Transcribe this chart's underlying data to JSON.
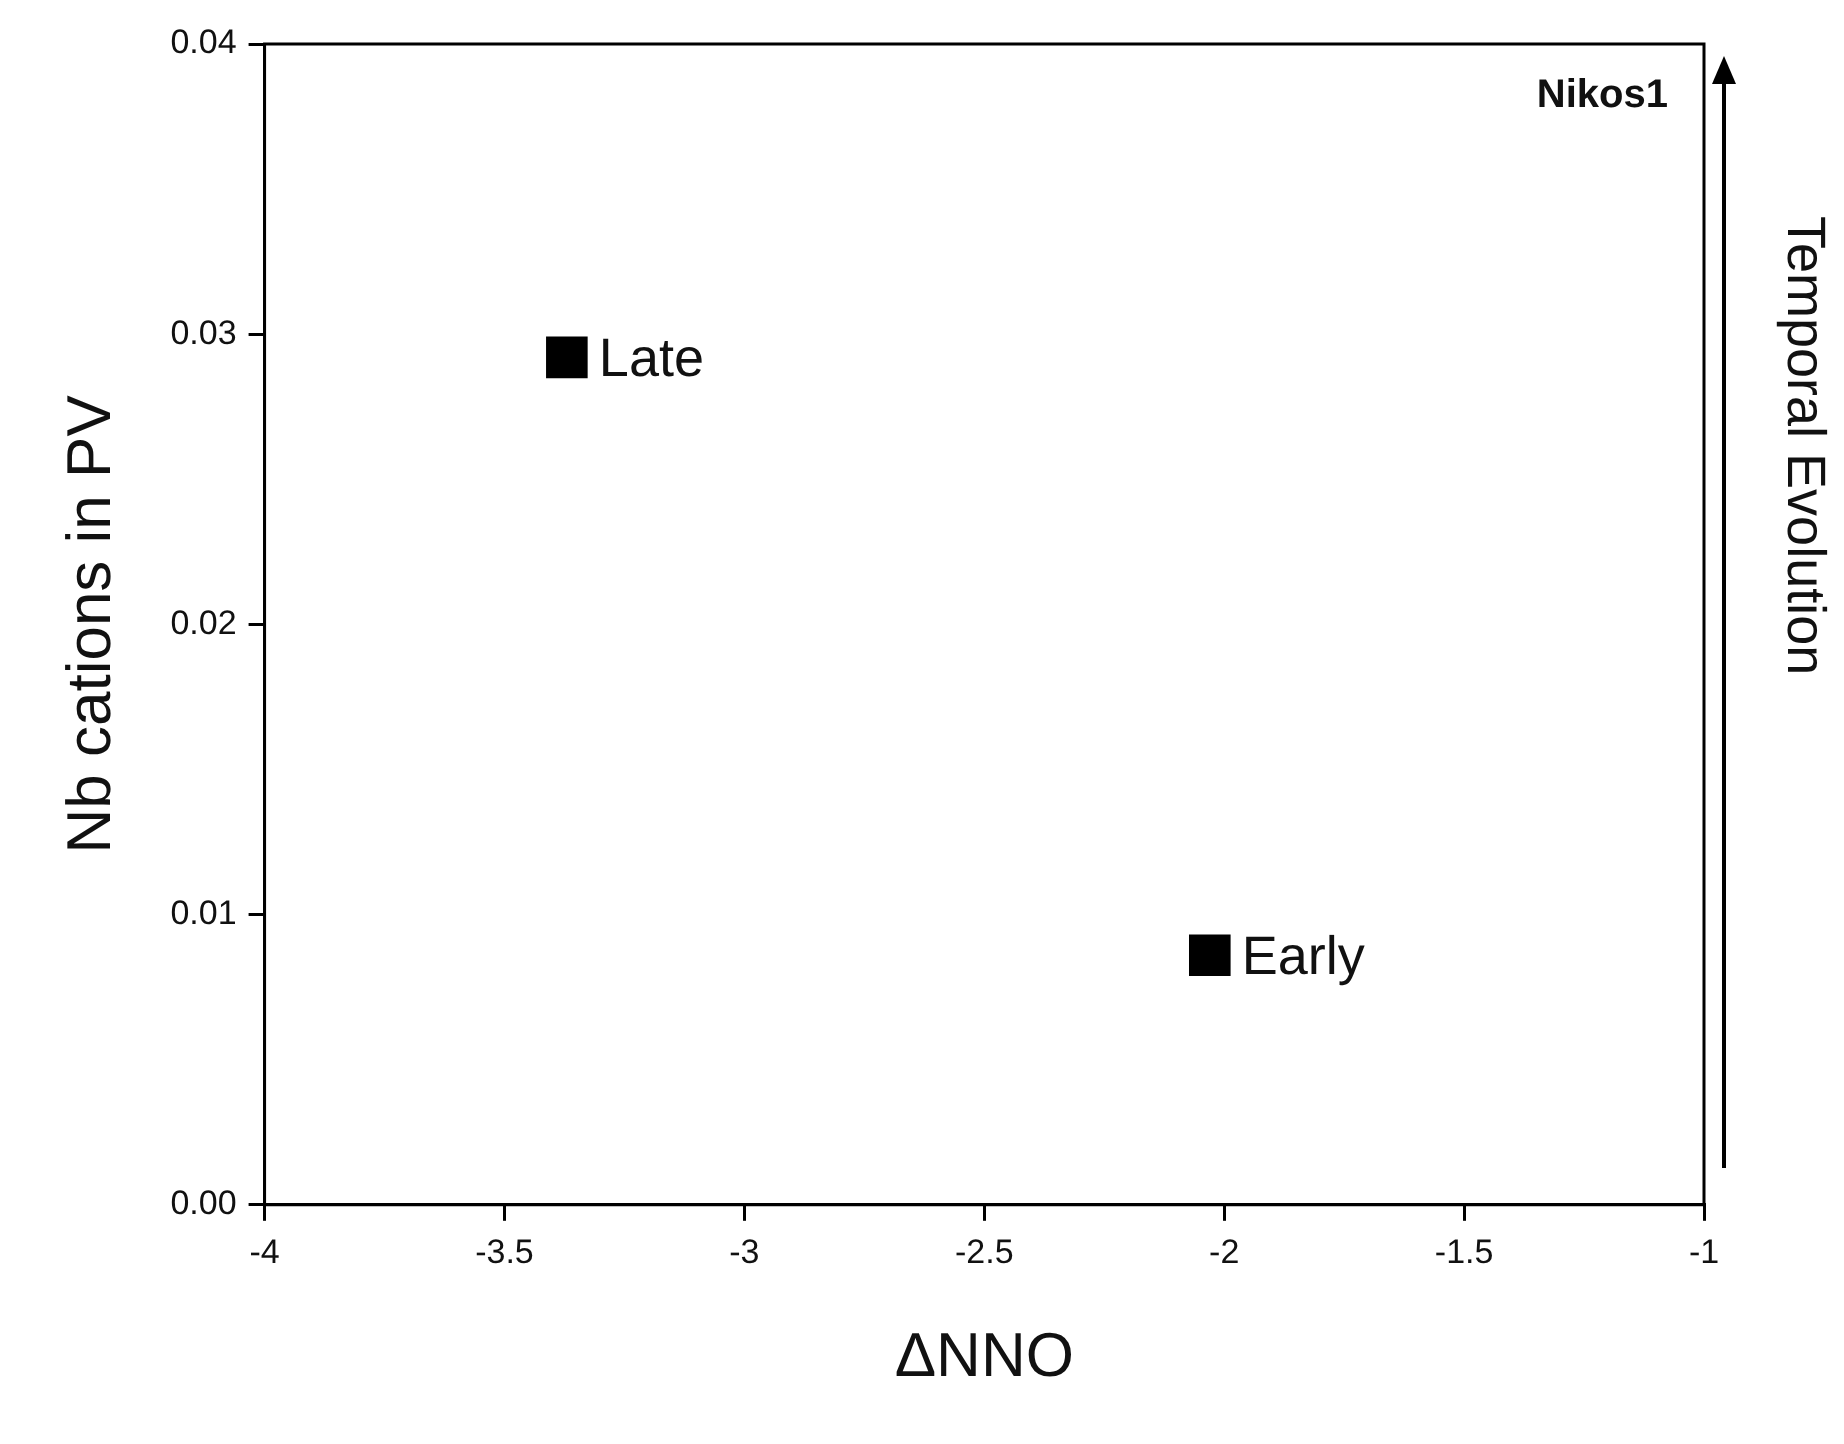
{
  "chart_data": {
    "type": "scatter",
    "xlabel": "ΔNNO",
    "ylabel": "Nb cations in PV",
    "series": [
      {
        "color": "#000000",
        "x": [
          -3.37,
          -2.03
        ],
        "values": [
          0.0292,
          0.0086
        ]
      }
    ],
    "marker": "square",
    "xlim": [
      -4,
      -1
    ],
    "xticks": [
      -4,
      -3.5,
      -3,
      -2.5,
      -2,
      -1.5,
      -1
    ],
    "ylim": [
      0,
      0.04
    ],
    "yticks": [
      {
        "value": 0,
        "label": "0.00"
      },
      {
        "value": 0.01,
        "label": "0.01"
      },
      {
        "value": 0.02,
        "label": "0.02"
      },
      {
        "value": 0.03,
        "label": "0.03"
      },
      {
        "value": 0.04,
        "label": "0.04"
      }
    ],
    "grid": false,
    "legend": false,
    "annotations": [
      {
        "text": "Late",
        "x": -3.37,
        "y": 0.0292
      },
      {
        "text": "Early",
        "x": -2.03,
        "y": 0.0086
      },
      "Nikos1",
      "Temporal Evolution"
    ]
  }
}
